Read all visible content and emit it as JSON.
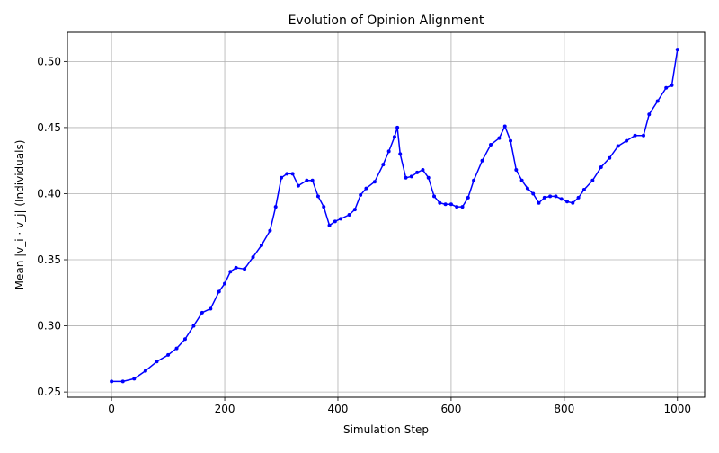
{
  "chart_data": {
    "type": "line",
    "title": "Evolution of Opinion Alignment",
    "xlabel": "Simulation Step",
    "ylabel": "Mean |v_i · v_j| (Individuals)",
    "xlim": [
      -78,
      1048
    ],
    "ylim": [
      0.246,
      0.522
    ],
    "xticks": [
      0,
      200,
      400,
      600,
      800,
      1000
    ],
    "xtick_labels": [
      "0",
      "200",
      "400",
      "600",
      "800",
      "1000"
    ],
    "yticks": [
      0.25,
      0.3,
      0.35,
      0.4,
      0.45,
      0.5
    ],
    "ytick_labels": [
      "0.25",
      "0.30",
      "0.35",
      "0.40",
      "0.45",
      "0.50"
    ],
    "grid": true,
    "series": [
      {
        "color": "#0000ff",
        "marker": "circle",
        "x": [
          0,
          20,
          40,
          60,
          80,
          100,
          115,
          130,
          145,
          160,
          175,
          190,
          200,
          210,
          220,
          235,
          250,
          265,
          280,
          290,
          300,
          310,
          320,
          330,
          345,
          355,
          365,
          375,
          385,
          395,
          405,
          420,
          430,
          440,
          450,
          465,
          480,
          490,
          500,
          505,
          510,
          520,
          530,
          540,
          550,
          560,
          570,
          580,
          590,
          600,
          610,
          620,
          630,
          640,
          655,
          670,
          685,
          695,
          705,
          715,
          725,
          735,
          745,
          755,
          765,
          775,
          785,
          795,
          805,
          815,
          825,
          835,
          850,
          865,
          880,
          895,
          910,
          925,
          940,
          950,
          965,
          980,
          990,
          1000
        ],
        "y": [
          0.258,
          0.258,
          0.26,
          0.266,
          0.273,
          0.278,
          0.283,
          0.29,
          0.3,
          0.31,
          0.313,
          0.326,
          0.332,
          0.341,
          0.344,
          0.343,
          0.352,
          0.361,
          0.372,
          0.39,
          0.412,
          0.415,
          0.415,
          0.406,
          0.41,
          0.41,
          0.398,
          0.39,
          0.376,
          0.379,
          0.381,
          0.384,
          0.388,
          0.399,
          0.404,
          0.409,
          0.422,
          0.432,
          0.443,
          0.45,
          0.43,
          0.412,
          0.413,
          0.416,
          0.418,
          0.412,
          0.398,
          0.393,
          0.392,
          0.392,
          0.39,
          0.39,
          0.397,
          0.41,
          0.425,
          0.437,
          0.442,
          0.451,
          0.44,
          0.418,
          0.41,
          0.404,
          0.4,
          0.393,
          0.397,
          0.398,
          0.398,
          0.396,
          0.394,
          0.393,
          0.397,
          0.403,
          0.41,
          0.42,
          0.427,
          0.436,
          0.44,
          0.444,
          0.444,
          0.46,
          0.47,
          0.48,
          0.482,
          0.509
        ]
      }
    ]
  }
}
